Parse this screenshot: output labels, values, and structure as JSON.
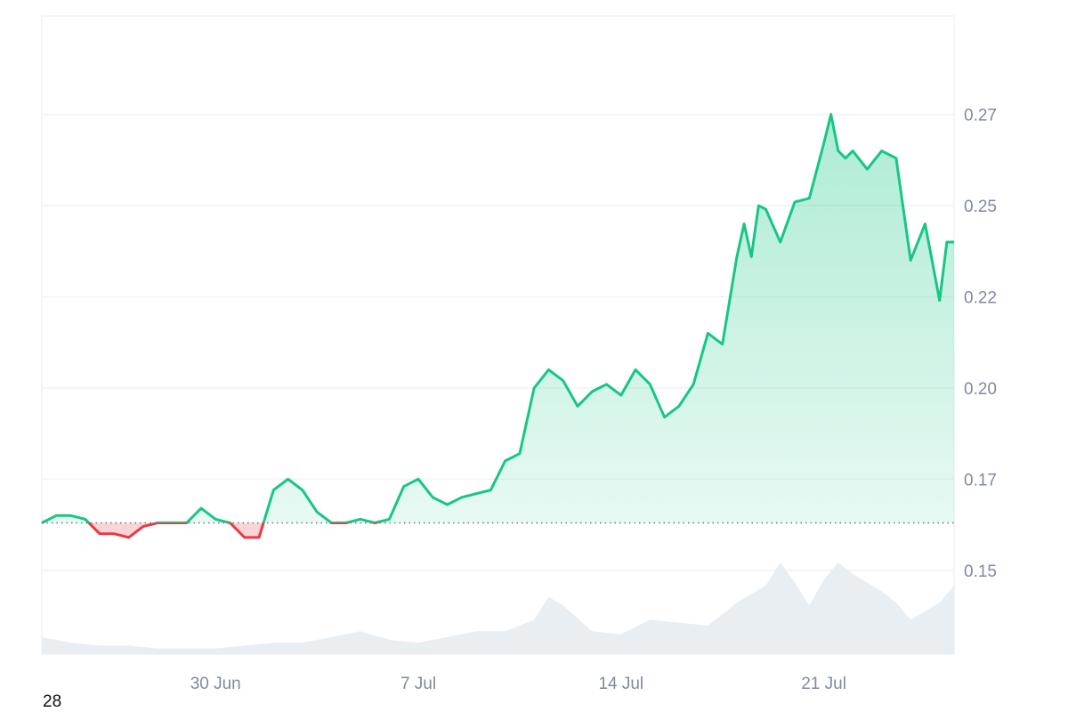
{
  "chart_data": {
    "type": "area",
    "x_tick_labels": [
      "30 Jun",
      "7 Jul",
      "14 Jul",
      "21 Jul"
    ],
    "x_tick_dates": [
      "2025-06-30",
      "2025-07-07",
      "2025-07-14",
      "2025-07-21"
    ],
    "y_tick_labels": [
      "0.15",
      "0.17",
      "0.20",
      "0.22",
      "0.25",
      "0.27"
    ],
    "y_tick_values": [
      0.15,
      0.175,
      0.2,
      0.225,
      0.25,
      0.275
    ],
    "ylim": [
      0.127,
      0.302
    ],
    "xlim": [
      "2025-06-24",
      "2025-07-25T12:00"
    ],
    "baseline": 0.163,
    "grid": true,
    "colors": {
      "up": "#16c784",
      "down": "#ea3943",
      "grid": "#eff2f5",
      "baseline": "#6b7280",
      "volume": "#e9eef3"
    },
    "price": {
      "x": [
        "2025-06-24",
        "2025-06-24T12:00",
        "2025-06-25",
        "2025-06-25T12:00",
        "2025-06-26",
        "2025-06-26T12:00",
        "2025-06-27",
        "2025-06-27T12:00",
        "2025-06-28",
        "2025-06-28T12:00",
        "2025-06-29",
        "2025-06-29T12:00",
        "2025-06-30",
        "2025-06-30T12:00",
        "2025-07-01",
        "2025-07-01T12:00",
        "2025-07-02",
        "2025-07-02T12:00",
        "2025-07-03",
        "2025-07-03T12:00",
        "2025-07-04",
        "2025-07-04T12:00",
        "2025-07-05",
        "2025-07-05T12:00",
        "2025-07-06",
        "2025-07-06T12:00",
        "2025-07-07",
        "2025-07-07T12:00",
        "2025-07-08",
        "2025-07-08T12:00",
        "2025-07-09",
        "2025-07-09T12:00",
        "2025-07-10",
        "2025-07-10T12:00",
        "2025-07-11",
        "2025-07-11T12:00",
        "2025-07-12",
        "2025-07-12T12:00",
        "2025-07-13",
        "2025-07-13T12:00",
        "2025-07-14",
        "2025-07-14T12:00",
        "2025-07-15",
        "2025-07-15T12:00",
        "2025-07-16",
        "2025-07-16T12:00",
        "2025-07-17",
        "2025-07-17T12:00",
        "2025-07-18",
        "2025-07-18T06:00",
        "2025-07-18T12:00",
        "2025-07-18T18:00",
        "2025-07-19",
        "2025-07-19T12:00",
        "2025-07-20",
        "2025-07-20T12:00",
        "2025-07-21",
        "2025-07-21T06:00",
        "2025-07-21T12:00",
        "2025-07-21T18:00",
        "2025-07-22",
        "2025-07-22T12:00",
        "2025-07-23",
        "2025-07-23T12:00",
        "2025-07-24",
        "2025-07-24T12:00",
        "2025-07-25",
        "2025-07-25T06:00",
        "2025-07-25T12:00"
      ],
      "y": [
        0.163,
        0.165,
        0.165,
        0.164,
        0.16,
        0.16,
        0.159,
        0.162,
        0.163,
        0.163,
        0.163,
        0.167,
        0.164,
        0.163,
        0.159,
        0.159,
        0.172,
        0.175,
        0.172,
        0.166,
        0.163,
        0.163,
        0.164,
        0.163,
        0.164,
        0.173,
        0.175,
        0.17,
        0.168,
        0.17,
        0.171,
        0.172,
        0.18,
        0.182,
        0.2,
        0.205,
        0.202,
        0.195,
        0.199,
        0.201,
        0.198,
        0.205,
        0.201,
        0.192,
        0.195,
        0.201,
        0.215,
        0.212,
        0.236,
        0.245,
        0.236,
        0.25,
        0.249,
        0.24,
        0.251,
        0.252,
        0.267,
        0.275,
        0.265,
        0.263,
        0.265,
        0.26,
        0.265,
        0.263,
        0.235,
        0.245,
        0.224,
        0.24,
        0.24
      ]
    },
    "volume": {
      "x": [
        "2025-06-24",
        "2025-06-25",
        "2025-06-26",
        "2025-06-27",
        "2025-06-28",
        "2025-06-29",
        "2025-06-30",
        "2025-07-01",
        "2025-07-02",
        "2025-07-03",
        "2025-07-04",
        "2025-07-05",
        "2025-07-06",
        "2025-07-07",
        "2025-07-08",
        "2025-07-09",
        "2025-07-10",
        "2025-07-11",
        "2025-07-11T12:00",
        "2025-07-12",
        "2025-07-13",
        "2025-07-14",
        "2025-07-15",
        "2025-07-16",
        "2025-07-17",
        "2025-07-18",
        "2025-07-19",
        "2025-07-19T12:00",
        "2025-07-20",
        "2025-07-20T12:00",
        "2025-07-21",
        "2025-07-21T12:00",
        "2025-07-22",
        "2025-07-23",
        "2025-07-23T12:00",
        "2025-07-24",
        "2025-07-25",
        "2025-07-25T12:00"
      ],
      "y": [
        6,
        4,
        3,
        3,
        2,
        2,
        2,
        3,
        4,
        4,
        6,
        8,
        5,
        4,
        6,
        8,
        8,
        12,
        20,
        17,
        8,
        7,
        12,
        11,
        10,
        18,
        24,
        32,
        25,
        17,
        26,
        32,
        28,
        22,
        18,
        12,
        18,
        24
      ]
    }
  },
  "footer": {
    "corner_text": "28"
  }
}
